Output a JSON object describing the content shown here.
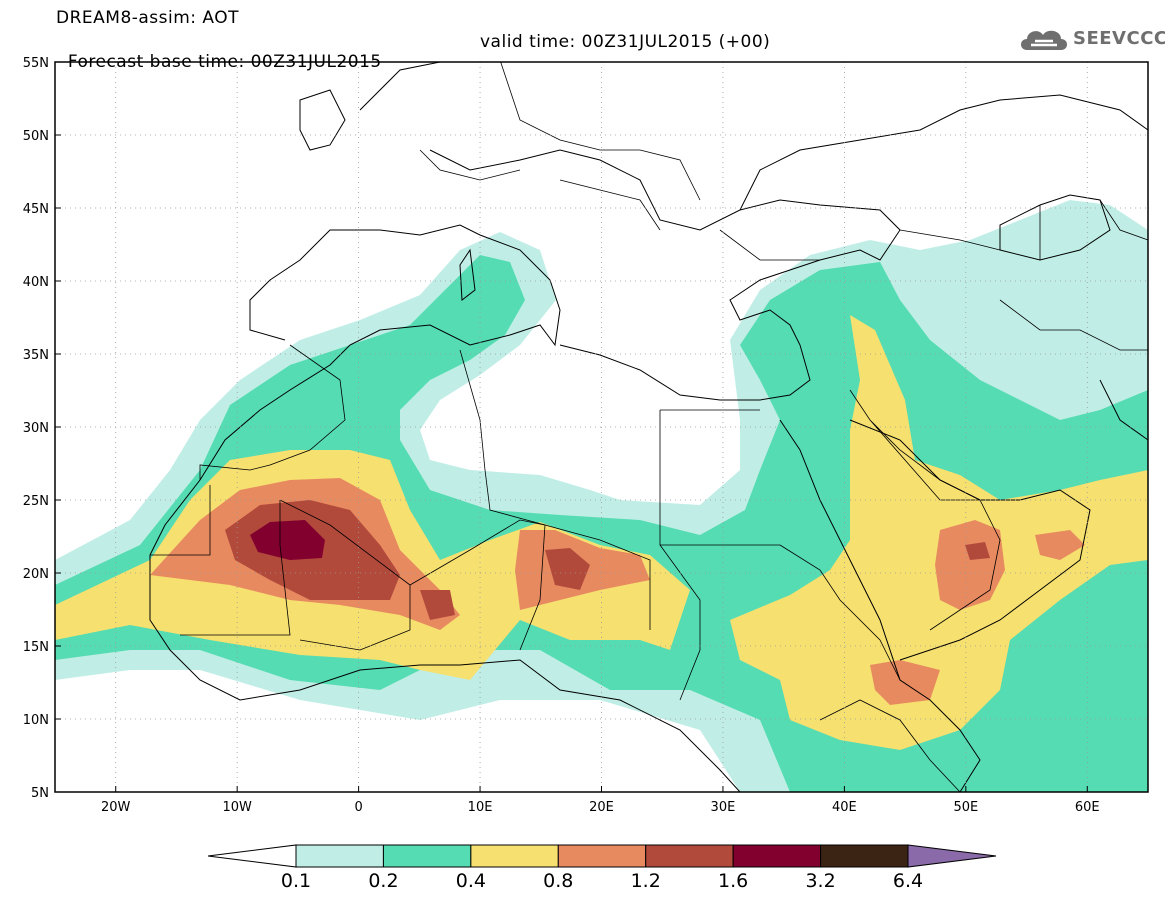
{
  "header": {
    "line1": "DREAM8-assim: AOT",
    "line2_base": "Forecast base time: 00Z31JUL2015",
    "line2_valid": "valid time: 00Z31JUL2015 (+00)"
  },
  "logo": {
    "text": "SEEVCCC",
    "icon": "cloud-logo-icon",
    "color": "#6f6f6f"
  },
  "map": {
    "lon_range": [
      -25,
      65
    ],
    "lat_range": [
      5,
      55
    ],
    "lon_ticks": [
      {
        "value": -20,
        "label": "20W"
      },
      {
        "value": -10,
        "label": "10W"
      },
      {
        "value": 0,
        "label": "0"
      },
      {
        "value": 10,
        "label": "10E"
      },
      {
        "value": 20,
        "label": "20E"
      },
      {
        "value": 30,
        "label": "30E"
      },
      {
        "value": 40,
        "label": "40E"
      },
      {
        "value": 50,
        "label": "50E"
      },
      {
        "value": 60,
        "label": "60E"
      }
    ],
    "lat_ticks": [
      {
        "value": 55,
        "label": "55N"
      },
      {
        "value": 50,
        "label": "50N"
      },
      {
        "value": 45,
        "label": "45N"
      },
      {
        "value": 40,
        "label": "40N"
      },
      {
        "value": 35,
        "label": "35N"
      },
      {
        "value": 30,
        "label": "30N"
      },
      {
        "value": 25,
        "label": "25N"
      },
      {
        "value": 20,
        "label": "20N"
      },
      {
        "value": 15,
        "label": "15N"
      },
      {
        "value": 10,
        "label": "10N"
      },
      {
        "value": 5,
        "label": "5N"
      }
    ],
    "grid": "dotted",
    "levels": [
      {
        "label": "0.1",
        "value": 0.1
      },
      {
        "label": "0.2",
        "value": 0.2
      },
      {
        "label": "0.4",
        "value": 0.4
      },
      {
        "label": "0.8",
        "value": 0.8
      },
      {
        "label": "1.2",
        "value": 1.2
      },
      {
        "label": "1.6",
        "value": 1.6
      },
      {
        "label": "3.2",
        "value": 3.2
      },
      {
        "label": "6.4",
        "value": 6.4
      }
    ],
    "colors": [
      "#ffffff",
      "#c0eee6",
      "#55dcb2",
      "#f6e070",
      "#e88a60",
      "#b24a3c",
      "#82002e",
      "#3c2414",
      "#8a6aa8"
    ]
  }
}
